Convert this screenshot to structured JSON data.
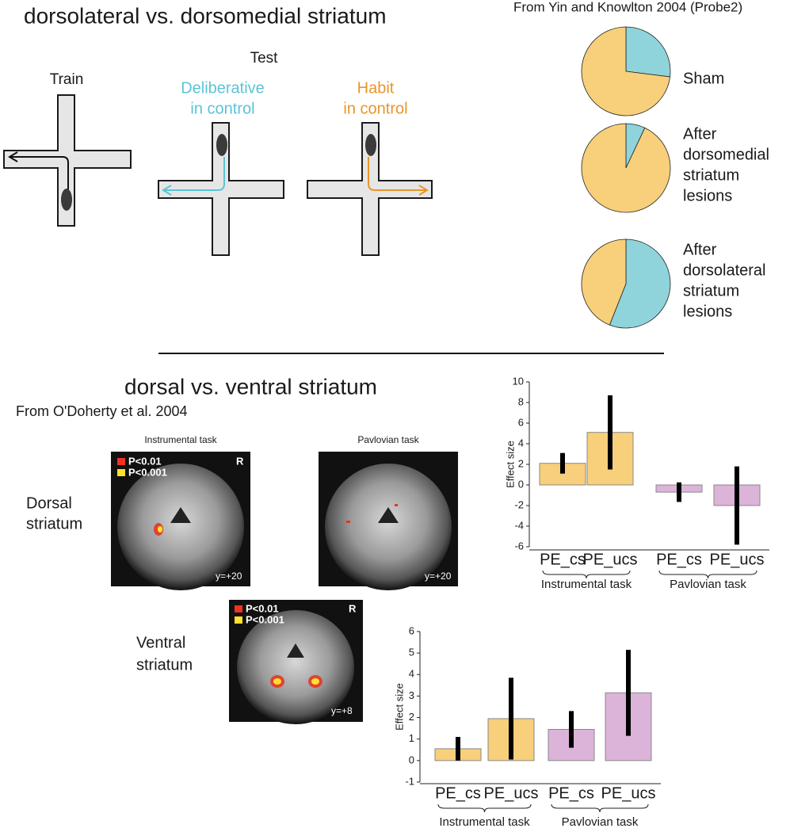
{
  "title": "dorsolateral vs. dorsomedial striatum",
  "maze": {
    "train": "Train",
    "test": "Test",
    "deliberative": [
      "Deliberative",
      "in control"
    ],
    "habit": [
      "Habit",
      "in control"
    ]
  },
  "pie_source": "From Yin and Knowlton 2004 (Probe2)",
  "section2_title": "dorsal vs. ventral striatum",
  "section2_source": "From O'Doherty et al. 2004",
  "brain": {
    "instrumental": "Instrumental task",
    "pavlovian": "Pavlovian task",
    "p1": "P<0.01",
    "p2": "P<0.001",
    "side": "R",
    "coord_dorsal": "y=+20",
    "coord_ventral": "y=+8",
    "dorsal_label": [
      "Dorsal",
      "striatum"
    ],
    "ventral_label": [
      "Ventral",
      "striatum"
    ]
  },
  "chart_data": [
    {
      "type": "pie",
      "label": [
        "Sham"
      ],
      "values": [
        27,
        73
      ],
      "colors": [
        "#8fd4da",
        "#f8cf7a"
      ]
    },
    {
      "type": "pie",
      "label": [
        "After",
        "dorsomedial",
        "striatum",
        "lesions"
      ],
      "values": [
        7,
        93
      ],
      "colors": [
        "#8fd4da",
        "#f8cf7a"
      ]
    },
    {
      "type": "pie",
      "label": [
        "After",
        "dorsolateral",
        "striatum",
        "lesions"
      ],
      "values": [
        56,
        44
      ],
      "colors": [
        "#8fd4da",
        "#f8cf7a"
      ]
    },
    {
      "type": "bar",
      "ylabel": "Effect size",
      "categories": [
        "PE_cs",
        "PE_ucs",
        "PE_cs",
        "PE_ucs"
      ],
      "groups": [
        "Instrumental task",
        "Pavlovian task"
      ],
      "values": [
        2.1,
        5.1,
        -0.7,
        -2.0
      ],
      "errors": [
        1.0,
        3.6,
        0.95,
        3.8
      ],
      "colors": [
        "#f8cf7a",
        "#f8cf7a",
        "#dcb3d9",
        "#dcb3d9"
      ],
      "ylim": [
        -6,
        10
      ],
      "yticks": [
        -6,
        -4,
        -2,
        0,
        2,
        4,
        6,
        8,
        10
      ]
    },
    {
      "type": "bar",
      "ylabel": "Effect size",
      "categories": [
        "PE_cs",
        "PE_ucs",
        "PE_cs",
        "PE_ucs"
      ],
      "groups": [
        "Instrumental task",
        "Pavlovian task"
      ],
      "values": [
        0.55,
        1.95,
        1.45,
        3.15
      ],
      "errors": [
        0.55,
        1.9,
        0.85,
        2.0
      ],
      "colors": [
        "#f8cf7a",
        "#f8cf7a",
        "#dcb3d9",
        "#dcb3d9"
      ],
      "ylim": [
        -1,
        6
      ],
      "yticks": [
        -1,
        0,
        1,
        2,
        3,
        4,
        5,
        6
      ]
    }
  ]
}
